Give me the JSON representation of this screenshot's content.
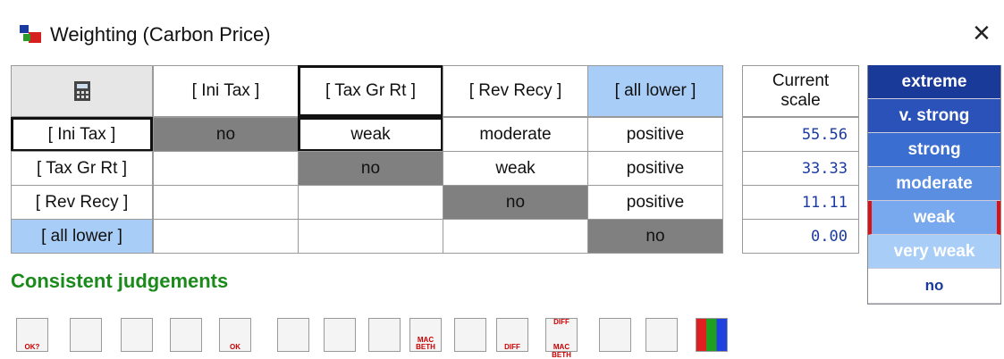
{
  "window": {
    "title": "Weighting (Carbon Price)",
    "close": "×"
  },
  "matrix": {
    "columns": [
      "[ Ini Tax ]",
      "[ Tax Gr Rt ]",
      "[ Rev Recy ]",
      "[ all lower ]"
    ],
    "rows": [
      {
        "label": "[ Ini Tax ]",
        "cells": [
          "no",
          "weak",
          "moderate",
          "positive"
        ]
      },
      {
        "label": "[ Tax Gr Rt ]",
        "cells": [
          null,
          "no",
          "weak",
          "positive"
        ]
      },
      {
        "label": "[ Rev Recy ]",
        "cells": [
          null,
          null,
          "no",
          "positive"
        ]
      },
      {
        "label": "[ all lower ]",
        "cells": [
          null,
          null,
          null,
          "no"
        ]
      }
    ]
  },
  "scale": {
    "header": "Current scale",
    "values": [
      "55.56",
      "33.33",
      "11.11",
      "0.00"
    ]
  },
  "legend": [
    "extreme",
    "v. strong",
    "strong",
    "moderate",
    "weak",
    "very weak",
    "no"
  ],
  "status": "Consistent judgements",
  "toolbar": [
    "OK?",
    "OK",
    "MAC BETH",
    "DIFF",
    "DIFF",
    "MAC BETH"
  ]
}
